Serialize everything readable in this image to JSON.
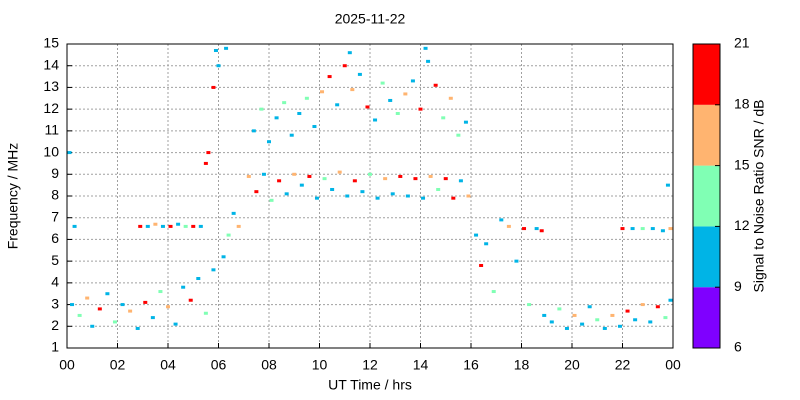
{
  "chart_data": {
    "type": "scatter",
    "title": "2025-11-22",
    "x_label": "UT Time / hrs",
    "y_label": "Frequency / MHz",
    "xlim": [
      0,
      24
    ],
    "xticks": [
      {
        "value": 0,
        "label": "00"
      },
      {
        "value": 2,
        "label": "02"
      },
      {
        "value": 4,
        "label": "04"
      },
      {
        "value": 6,
        "label": "06"
      },
      {
        "value": 8,
        "label": "08"
      },
      10,
      12,
      14,
      16,
      18,
      20,
      22,
      {
        "value": 24,
        "label": "00"
      }
    ],
    "ylim": [
      1,
      15
    ],
    "yticks": [
      1,
      2,
      3,
      4,
      5,
      6,
      7,
      8,
      9,
      10,
      11,
      12,
      13,
      14,
      15
    ],
    "grid": true,
    "colorbar": {
      "label": "Signal to Noise Ratio SNR / dB",
      "lim": [
        6,
        21
      ],
      "ticks": [
        6,
        9,
        12,
        15,
        18,
        21
      ],
      "colors": [
        "#7f00ff",
        "#00b4e6",
        "#80ffb4",
        "#ffb470",
        "#ff0000"
      ]
    },
    "x": [
      0.2,
      0.5,
      0.8,
      1.0,
      1.3,
      1.6,
      1.9,
      2.2,
      2.5,
      2.8,
      3.1,
      3.4,
      3.7,
      4.0,
      4.3,
      4.6,
      4.9,
      5.2,
      5.5,
      5.8,
      0.3,
      0.1,
      2.9,
      3.2,
      3.5,
      3.8,
      4.1,
      4.4,
      4.7,
      5.0,
      5.3,
      5.5,
      5.6,
      5.8,
      5.9,
      6.0,
      6.3,
      6.2,
      6.4,
      6.6,
      6.8,
      7.2,
      7.5,
      7.8,
      8.1,
      8.4,
      8.7,
      9.0,
      9.3,
      9.6,
      9.9,
      10.2,
      10.5,
      10.8,
      11.1,
      11.4,
      11.7,
      12.0,
      12.3,
      12.6,
      12.9,
      13.2,
      13.5,
      13.8,
      14.1,
      14.4,
      14.7,
      15.0,
      15.3,
      15.6,
      15.9,
      7.4,
      7.7,
      8.0,
      8.3,
      8.6,
      8.9,
      9.2,
      9.5,
      9.8,
      10.1,
      10.4,
      10.7,
      11.0,
      11.3,
      11.6,
      11.9,
      12.2,
      12.5,
      12.8,
      13.1,
      13.4,
      13.7,
      14.0,
      14.3,
      14.6,
      14.9,
      15.2,
      15.5,
      15.8,
      14.2,
      11.2,
      16.2,
      16.4,
      16.6,
      16.9,
      17.2,
      17.5,
      17.8,
      18.1,
      18.3,
      18.6,
      18.9,
      18.8,
      19.2,
      19.5,
      19.8,
      20.1,
      20.4,
      20.7,
      21.0,
      21.3,
      21.6,
      21.9,
      22.2,
      22.5,
      22.8,
      23.1,
      23.4,
      23.7,
      23.9,
      22.0,
      22.4,
      22.8,
      23.2,
      23.6,
      23.9,
      23.8
    ],
    "y": [
      3.0,
      2.5,
      3.3,
      2.0,
      2.8,
      3.5,
      2.2,
      3.0,
      2.7,
      1.9,
      3.1,
      2.4,
      3.6,
      2.9,
      2.1,
      3.8,
      3.2,
      4.2,
      2.6,
      4.6,
      6.6,
      10,
      6.6,
      6.6,
      6.7,
      6.6,
      6.6,
      6.7,
      6.6,
      6.6,
      6.6,
      9.5,
      10,
      13,
      14.7,
      14,
      14.8,
      5.2,
      6.2,
      7.2,
      6.6,
      8.9,
      8.2,
      9.0,
      7.8,
      8.7,
      8.1,
      9.0,
      8.5,
      8.9,
      7.9,
      8.8,
      8.3,
      9.1,
      8.0,
      8.7,
      8.2,
      9.0,
      7.9,
      8.8,
      8.1,
      8.9,
      8.0,
      8.8,
      7.9,
      8.9,
      8.3,
      8.8,
      7.9,
      8.7,
      8.0,
      11.0,
      12.0,
      10.5,
      11.6,
      12.3,
      10.8,
      11.8,
      12.5,
      11.2,
      12.8,
      13.5,
      12.2,
      14.0,
      12.9,
      13.6,
      12.1,
      11.5,
      13.2,
      12.4,
      11.8,
      12.7,
      13.3,
      12.0,
      14.2,
      13.1,
      11.6,
      12.5,
      10.8,
      11.4,
      14.8,
      14.6,
      6.2,
      4.8,
      5.8,
      3.6,
      6.9,
      6.6,
      5.0,
      6.5,
      3.0,
      6.5,
      2.5,
      6.4,
      2.2,
      2.8,
      1.9,
      2.5,
      2.1,
      2.9,
      2.3,
      1.9,
      2.5,
      2.0,
      2.7,
      2.3,
      3.0,
      2.2,
      2.9,
      2.4,
      3.2,
      6.5,
      6.5,
      6.5,
      6.5,
      6.4,
      6.5,
      8.5
    ],
    "snr": [
      10,
      12,
      17,
      10,
      19,
      10,
      13,
      10,
      17,
      10,
      20,
      10,
      12,
      17,
      10,
      10,
      19,
      10,
      13,
      10,
      10,
      10,
      19,
      10,
      17,
      10,
      20,
      10,
      12,
      19,
      10,
      19,
      20,
      20,
      10,
      10,
      10,
      10,
      12,
      10,
      17,
      17,
      20,
      10,
      12,
      19,
      10,
      17,
      10,
      20,
      10,
      12,
      10,
      17,
      10,
      20,
      10,
      12,
      10,
      17,
      10,
      19,
      10,
      20,
      10,
      17,
      12,
      20,
      19,
      10,
      17,
      10,
      12,
      10,
      10,
      13,
      10,
      10,
      12,
      10,
      17,
      19,
      10,
      20,
      17,
      10,
      19,
      10,
      12,
      10,
      13,
      17,
      10,
      20,
      10,
      19,
      12,
      17,
      13,
      10,
      10,
      10,
      10,
      20,
      10,
      12,
      10,
      17,
      10,
      19,
      13,
      10,
      10,
      20,
      10,
      13,
      10,
      17,
      10,
      10,
      12,
      10,
      17,
      10,
      19,
      10,
      17,
      10,
      20,
      13,
      10,
      19,
      10,
      12,
      10,
      10,
      17,
      10
    ]
  }
}
